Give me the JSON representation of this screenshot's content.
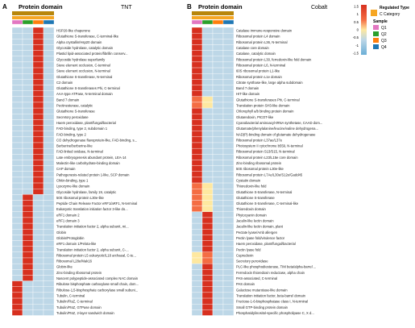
{
  "colors": {
    "high": "#d7301f",
    "mid_high": "#f46d43",
    "mid": "#fee8a0",
    "low": "#bdd7e7",
    "very_low": "#6baed6",
    "q_colors": [
      "#e377c2",
      "#2ca02c",
      "#ff7f0e",
      "#1f77b4"
    ],
    "category_color": "#f6a623",
    "bar_fill": "#b8860b"
  },
  "legend": {
    "title_regulated": "Regulated Type",
    "category_label": "C Category",
    "sample_title": "Sample",
    "samples": [
      "Q1",
      "Q2",
      "Q3",
      "Q4"
    ],
    "scale_ticks": [
      "1.5",
      "1",
      "0.5",
      "0",
      "-0.5",
      "-1",
      "-1.5"
    ]
  },
  "chart_data": [
    {
      "type": "heatmap",
      "panel_letter": "A",
      "panel_header": "Protein domain",
      "title": "TNT",
      "columns": [
        "Q1",
        "Q2",
        "Q3",
        "Q4"
      ],
      "rows": [
        {
          "label": "HSP20-like chaperone",
          "values": [
            0.1,
            0.2,
            1.4,
            0.0
          ]
        },
        {
          "label": "Glutathione S-transferase, C-terminal-like",
          "values": [
            0.1,
            0.1,
            1.4,
            0.1
          ]
        },
        {
          "label": "Alpha crystallin/Hsp20 domain",
          "values": [
            0.1,
            0.1,
            1.4,
            0.1
          ]
        },
        {
          "label": "Glycoside hydrolase, catalytic domain",
          "values": [
            0.1,
            0.1,
            1.4,
            0.1
          ]
        },
        {
          "label": "Plastid lipid-associated protein/fibrillin conserv...",
          "values": [
            0.1,
            0.1,
            1.4,
            0.1
          ]
        },
        {
          "label": "Glycoside hydrolase superfamily",
          "values": [
            0.1,
            0.1,
            1.4,
            0.1
          ]
        },
        {
          "label": "Sieve element occlusion, C-terminal",
          "values": [
            0.1,
            0.1,
            1.4,
            0.1
          ]
        },
        {
          "label": "Sieve element occlusion, N-terminal",
          "values": [
            0.1,
            0.1,
            1.4,
            0.1
          ]
        },
        {
          "label": "Glutathione S-transferase, N-terminal",
          "values": [
            0.1,
            0.1,
            1.4,
            0.1
          ]
        },
        {
          "label": "C2 domain",
          "values": [
            0.1,
            0.1,
            1.4,
            0.1
          ]
        },
        {
          "label": "Glutathione S-transferases Phi, C-terminal",
          "values": [
            0.1,
            0.1,
            1.4,
            0.1
          ]
        },
        {
          "label": "AAA-type ATPase, N-terminal domain",
          "values": [
            0.1,
            0.1,
            1.4,
            0.1
          ]
        },
        {
          "label": "Band 7 domain",
          "values": [
            0.1,
            0.1,
            1.4,
            0.1
          ]
        },
        {
          "label": "Pectinesterase, catalytic",
          "values": [
            0.1,
            0.1,
            1.4,
            0.1
          ]
        },
        {
          "label": "Glutathione S-transferase",
          "values": [
            0.1,
            0.1,
            1.4,
            0.1
          ]
        },
        {
          "label": "Secretory peroxidase",
          "values": [
            0.1,
            0.1,
            1.4,
            0.1
          ]
        },
        {
          "label": "Haem peroxidase, plant/fungal/bacterial",
          "values": [
            0.1,
            0.1,
            1.4,
            0.1
          ]
        },
        {
          "label": "FAD-binding, type 2, subdomain 1",
          "values": [
            0.1,
            0.1,
            1.4,
            0.1
          ]
        },
        {
          "label": "FAD-binding, type 2",
          "values": [
            0.1,
            0.1,
            1.4,
            0.1
          ]
        },
        {
          "label": "CO dehydrogenase flavoprotein-like, FAD-binding, s...",
          "values": [
            0.1,
            0.1,
            1.4,
            0.1
          ]
        },
        {
          "label": "Berberine/berberine-like",
          "values": [
            0.1,
            0.1,
            1.4,
            0.1
          ]
        },
        {
          "label": "FAD-linked oxidase, N-terminal",
          "values": [
            0.1,
            0.1,
            1.4,
            0.1
          ]
        },
        {
          "label": "Late embryogenesis abundant protein, LEA-14",
          "values": [
            0.1,
            0.1,
            1.4,
            0.1
          ]
        },
        {
          "label": "Malectin-like carbohydrate-binding domain",
          "values": [
            0.1,
            0.1,
            1.4,
            0.1
          ]
        },
        {
          "label": "CAP domain",
          "values": [
            0.1,
            0.1,
            1.4,
            0.1
          ]
        },
        {
          "label": "Pathogenesis-related protein 1-like, SCP domain",
          "values": [
            0.1,
            0.1,
            1.4,
            0.1
          ]
        },
        {
          "label": "Chitin-binding, type 1",
          "values": [
            0.1,
            0.1,
            1.4,
            0.1
          ]
        },
        {
          "label": "Lysozyme-like domain",
          "values": [
            0.1,
            0.1,
            1.4,
            0.1
          ]
        },
        {
          "label": "Glycoside hydrolase, family 19, catalytic",
          "values": [
            0.1,
            0.1,
            1.4,
            0.1
          ]
        },
        {
          "label": "50S ribosomal protein L30e-like",
          "values": [
            0.1,
            1.4,
            0.1,
            0.0
          ]
        },
        {
          "label": "Peptide Chain Release Factor eRF1/aRF1, N-terminal",
          "values": [
            0.1,
            1.4,
            0.1,
            0.0
          ]
        },
        {
          "label": "Eukaryotic translation initiation factor 3-like do...",
          "values": [
            0.1,
            1.4,
            0.1,
            0.0
          ]
        },
        {
          "label": "eRF1 domain 2",
          "values": [
            0.1,
            1.4,
            0.1,
            0.0
          ]
        },
        {
          "label": "eRF1 domain 3",
          "values": [
            0.1,
            1.4,
            0.1,
            0.0
          ]
        },
        {
          "label": "Translation initiation factor 2, alpha subunit, mi...",
          "values": [
            0.1,
            1.4,
            0.1,
            0.0
          ]
        },
        {
          "label": "Globin",
          "values": [
            0.1,
            1.4,
            0.1,
            0.0
          ]
        },
        {
          "label": "Globin/Protoglobin",
          "values": [
            0.1,
            1.4,
            0.1,
            0.0
          ]
        },
        {
          "label": "eRF1 domain 1/Pelota-like",
          "values": [
            0.1,
            1.4,
            0.1,
            0.0
          ]
        },
        {
          "label": "Translation initiation factor 2, alpha subunit, C-...",
          "values": [
            0.1,
            1.4,
            0.1,
            0.0
          ]
        },
        {
          "label": "Ribosomal protein L5 eukaryotic/L18 archaeal, C-te...",
          "values": [
            0.1,
            1.4,
            0.1,
            0.0
          ]
        },
        {
          "label": "Ribosomal L28e/Mak16",
          "values": [
            0.1,
            1.4,
            0.1,
            0.0
          ]
        },
        {
          "label": "Globin-like",
          "values": [
            0.1,
            1.4,
            0.1,
            0.0
          ]
        },
        {
          "label": "Zinc-binding ribosomal protein",
          "values": [
            0.1,
            1.4,
            0.1,
            0.0
          ]
        },
        {
          "label": "Nascent polypeptide-associated complex NAC domain",
          "values": [
            0.1,
            1.4,
            0.1,
            0.0
          ]
        },
        {
          "label": "Ribulose bisphosphate carboxylase small chain, dom...",
          "values": [
            1.4,
            0.1,
            0.1,
            0.0
          ]
        },
        {
          "label": "Ribulose-1,5-bisphosphate carboxylase small subuni...",
          "values": [
            1.4,
            0.1,
            0.1,
            0.0
          ]
        },
        {
          "label": "Tubulin, C-terminal",
          "values": [
            1.4,
            0.1,
            0.1,
            0.0
          ]
        },
        {
          "label": "Tubulin/FtsZ, C-terminal",
          "values": [
            1.4,
            0.1,
            0.1,
            0.0
          ]
        },
        {
          "label": "Tubulin/FtsZ, GTPase domain",
          "values": [
            1.4,
            0.1,
            0.1,
            0.0
          ]
        },
        {
          "label": "Tubulin/FtsZ, 2-layer sandwich domain",
          "values": [
            1.4,
            0.1,
            0.1,
            0.0
          ]
        }
      ]
    },
    {
      "type": "heatmap",
      "panel_letter": "B",
      "panel_header": "Protein domain",
      "title": "Cobalt",
      "columns": [
        "Q1",
        "Q2",
        "Q3",
        "Q4"
      ],
      "rows": [
        {
          "label": "Catalase immune-responsive domain",
          "values": [
            1.4,
            0.1,
            0.0,
            0.0
          ]
        },
        {
          "label": "Ribosomal protein L4 domain",
          "values": [
            1.4,
            0.1,
            0.0,
            0.0
          ]
        },
        {
          "label": "Ribosomal protein L36, N-terminal",
          "values": [
            1.4,
            0.1,
            0.0,
            0.0
          ]
        },
        {
          "label": "Catalase core domain",
          "values": [
            1.4,
            0.1,
            0.0,
            0.0
          ]
        },
        {
          "label": "Catalase, catalytic domain",
          "values": [
            1.4,
            0.1,
            0.0,
            0.0
          ]
        },
        {
          "label": "Ribosomal protein L30, ferredoxin-like fold domain",
          "values": [
            1.4,
            0.1,
            0.0,
            0.0
          ]
        },
        {
          "label": "Ribosomal protein L6, N-terminal",
          "values": [
            1.4,
            0.1,
            0.0,
            0.0
          ]
        },
        {
          "label": "60S ribosomal protein L1-like",
          "values": [
            1.4,
            0.1,
            0.0,
            0.0
          ]
        },
        {
          "label": "Ribosomal protein L1e domain",
          "values": [
            1.4,
            0.1,
            0.0,
            0.0
          ]
        },
        {
          "label": "Citrate synthase-like, large alpha subdomain",
          "values": [
            1.4,
            0.1,
            0.0,
            0.0
          ]
        },
        {
          "label": "Band 7 domain",
          "values": [
            1.4,
            0.1,
            0.0,
            0.0
          ]
        },
        {
          "label": "HIT-like domain",
          "values": [
            1.4,
            0.1,
            0.0,
            0.0
          ]
        },
        {
          "label": "Glutathione S-transferases Phi, C-terminal",
          "values": [
            1.1,
            0.5,
            0.0,
            0.0
          ]
        },
        {
          "label": "Translation protein SH3-like domain",
          "values": [
            1.1,
            0.5,
            0.0,
            0.0
          ]
        },
        {
          "label": "Chlorophyll a/b binding protein domain",
          "values": [
            1.4,
            0.1,
            0.0,
            0.0
          ]
        },
        {
          "label": "Glutaredoxin, PICOT-like",
          "values": [
            1.4,
            0.1,
            0.0,
            0.0
          ]
        },
        {
          "label": "Cyanobacterial aminoacyl-tRNA synthetase, CAAD dom...",
          "values": [
            1.4,
            0.1,
            0.0,
            0.0
          ]
        },
        {
          "label": "Glutamate/phenylalanine/leucine/valine dehydrogena...",
          "values": [
            1.4,
            0.1,
            0.0,
            0.0
          ]
        },
        {
          "label": "NAD(P)-binding domain of glutamate dehydrogenase",
          "values": [
            1.4,
            0.1,
            0.0,
            0.0
          ]
        },
        {
          "label": "Ribosomal protein L37ae/L37e",
          "values": [
            1.4,
            0.1,
            0.0,
            0.0
          ]
        },
        {
          "label": "Photosystem II cytochrome b559, N-terminal",
          "values": [
            1.4,
            0.1,
            0.0,
            0.0
          ]
        },
        {
          "label": "Ribosomal protein S13/S15, N-terminal",
          "values": [
            1.4,
            0.1,
            0.0,
            0.0
          ]
        },
        {
          "label": "Ribosomal protein L23/L15e core domain",
          "values": [
            1.4,
            0.1,
            0.0,
            0.0
          ]
        },
        {
          "label": "Zinc-binding ribosomal protein",
          "values": [
            1.4,
            0.1,
            0.0,
            0.0
          ]
        },
        {
          "label": "50S ribosomal protein L30e-like",
          "values": [
            1.4,
            0.1,
            0.0,
            0.0
          ]
        },
        {
          "label": "Ribosomal protein L7Ae/L30e/S12e/Gadd45",
          "values": [
            1.4,
            0.1,
            0.0,
            0.0
          ]
        },
        {
          "label": "Cystatin domain",
          "values": [
            1.4,
            0.1,
            0.0,
            0.0
          ]
        },
        {
          "label": "Thioredoxin-like fold",
          "values": [
            1.1,
            0.5,
            0.0,
            0.0
          ]
        },
        {
          "label": "Glutathione S-transferase, N-terminal",
          "values": [
            1.1,
            0.5,
            0.0,
            0.0
          ]
        },
        {
          "label": "Glutathione S-transferase",
          "values": [
            1.1,
            0.5,
            0.0,
            0.0
          ]
        },
        {
          "label": "Glutathione S-transferase, C-terminal-like",
          "values": [
            1.1,
            0.5,
            0.0,
            0.0
          ]
        },
        {
          "label": "Thioredoxin domain",
          "values": [
            1.1,
            0.5,
            0.0,
            0.0
          ]
        },
        {
          "label": "Phytocyanin domain",
          "values": [
            0.1,
            1.4,
            0.0,
            0.0
          ]
        },
        {
          "label": "Jacalin-like lectin domain",
          "values": [
            0.1,
            1.4,
            0.0,
            0.0
          ]
        },
        {
          "label": "Jacalin-like lectin domain, plant",
          "values": [
            0.1,
            1.4,
            0.0,
            0.0
          ]
        },
        {
          "label": "Pectate lyase/Amb allergen",
          "values": [
            0.1,
            1.4,
            0.0,
            0.0
          ]
        },
        {
          "label": "Pectin lyase fold/virulence factor",
          "values": [
            0.1,
            1.4,
            0.0,
            0.0
          ]
        },
        {
          "label": "Haem peroxidase, plant/fungal/bacterial",
          "values": [
            0.1,
            1.4,
            0.0,
            0.0
          ]
        },
        {
          "label": "Pectin lyase fold",
          "values": [
            0.1,
            1.4,
            0.0,
            0.0
          ]
        },
        {
          "label": "Cupredoxin",
          "values": [
            0.5,
            1.1,
            0.0,
            0.0
          ]
        },
        {
          "label": "Secretory peroxidase",
          "values": [
            0.5,
            1.1,
            0.0,
            0.0
          ]
        },
        {
          "label": "PLC-like phosphodiesterase, TIM beta/alpha-barrel ...",
          "values": [
            0.1,
            1.4,
            0.0,
            0.0
          ]
        },
        {
          "label": "Ferredoxin thioredoxin reductase, alpha chain",
          "values": [
            0.1,
            1.4,
            0.0,
            0.0
          ]
        },
        {
          "label": "PAS-associated, C-terminal",
          "values": [
            0.1,
            1.4,
            0.0,
            0.0
          ]
        },
        {
          "label": "PAS domain",
          "values": [
            0.1,
            1.4,
            0.0,
            0.0
          ]
        },
        {
          "label": "Galactose mutarotase-like domain",
          "values": [
            0.1,
            1.4,
            0.0,
            0.0
          ]
        },
        {
          "label": "Translation initiation factor, beta-barrel domain",
          "values": [
            0.1,
            1.4,
            0.0,
            0.0
          ]
        },
        {
          "label": "Fructose-1-6-bisphosphatase class I, N-terminal",
          "values": [
            0.1,
            1.4,
            0.0,
            0.0
          ]
        },
        {
          "label": "Small GTP-binding protein domain",
          "values": [
            0.1,
            1.4,
            0.0,
            0.0
          ]
        },
        {
          "label": "Phosphatidylinositol-specific phospholipase C, X d...",
          "values": [
            0.1,
            1.4,
            0.0,
            0.0
          ]
        }
      ]
    }
  ]
}
